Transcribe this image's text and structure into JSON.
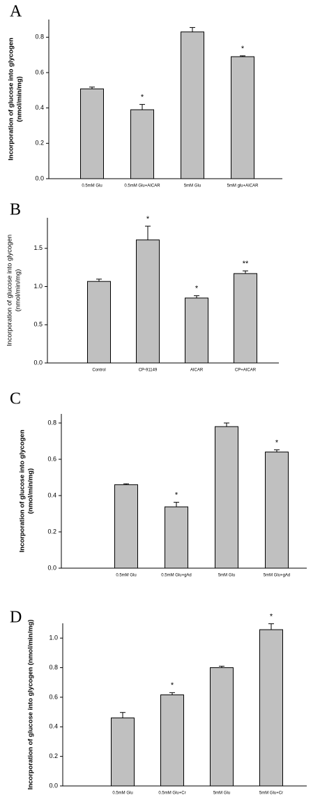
{
  "chart_data": [
    {
      "type": "bar",
      "panel": "A",
      "ylabel": [
        "Incorporation of glucose into glycogen",
        "(nmol/min/mg)"
      ],
      "categories": [
        "0.5mM Glu",
        "0.5mM Glu+AICAR",
        "5mM Glu",
        "5mM glu+AICAR"
      ],
      "values": [
        0.508,
        0.39,
        0.83,
        0.69
      ],
      "errors": [
        0.01,
        0.03,
        0.025,
        0.005
      ],
      "annotations": [
        null,
        "*",
        null,
        "*"
      ],
      "color": "#c0c0c0",
      "ylim": [
        0,
        0.9
      ],
      "yticks": [
        {
          "value": 0,
          "label": "0.0"
        },
        0.2,
        0.4,
        0.6,
        0.8
      ]
    },
    {
      "type": "bar",
      "panel": "B",
      "ylabel": [
        "Incorporation of glucose into glycogen",
        "(nmol/min/mg)"
      ],
      "categories": [
        "Control",
        "CP-91149",
        "AICAR",
        "CP+AICAR"
      ],
      "values": [
        1.067,
        1.61,
        0.85,
        1.17
      ],
      "errors": [
        0.03,
        0.18,
        0.03,
        0.035
      ],
      "annotations": [
        null,
        "*",
        "*",
        "**"
      ],
      "color": "#c0c0c0",
      "ylim": [
        0,
        1.9
      ],
      "yticks": [
        {
          "value": 0,
          "label": "0.0"
        },
        0.5,
        {
          "value": 1,
          "label": "1.0"
        },
        1.5
      ]
    },
    {
      "type": "bar",
      "panel": "C",
      "ylabel": [
        "Incorporation of glucose into glycogen",
        "(nmol/min/mg)"
      ],
      "categories": [
        "0.5mM Glu",
        "0.5mM Glu+gAd",
        "5mM Glu",
        "5mM Glu+gAd"
      ],
      "values": [
        0.46,
        0.338,
        0.78,
        0.64
      ],
      "errors": [
        0.005,
        0.025,
        0.02,
        0.012
      ],
      "annotations": [
        null,
        "*",
        null,
        "*"
      ],
      "color": "#c0c0c0",
      "ylim": [
        0,
        0.85
      ],
      "yticks": [
        {
          "value": 0,
          "label": "0.0"
        },
        0.2,
        0.4,
        0.6,
        0.8
      ]
    },
    {
      "type": "bar",
      "panel": "D",
      "ylabel": [
        "Incorporation of glucose into glycogen (nmol/min/mg)"
      ],
      "categories": [
        "0.5mM Glu",
        "0.5mM Glu+Cr",
        "5mM Glu",
        "5mM Glu+Cr"
      ],
      "values": [
        0.46,
        0.616,
        0.8,
        1.057
      ],
      "errors": [
        0.037,
        0.015,
        0.01,
        0.04
      ],
      "annotations": [
        null,
        "*",
        null,
        "*"
      ],
      "color": "#c0c0c0",
      "ylim": [
        0,
        1.1
      ],
      "yticks": [
        {
          "value": 0,
          "label": "0.0"
        },
        0.2,
        0.4,
        0.6,
        0.8,
        {
          "value": 1,
          "label": "1.0"
        }
      ]
    }
  ]
}
